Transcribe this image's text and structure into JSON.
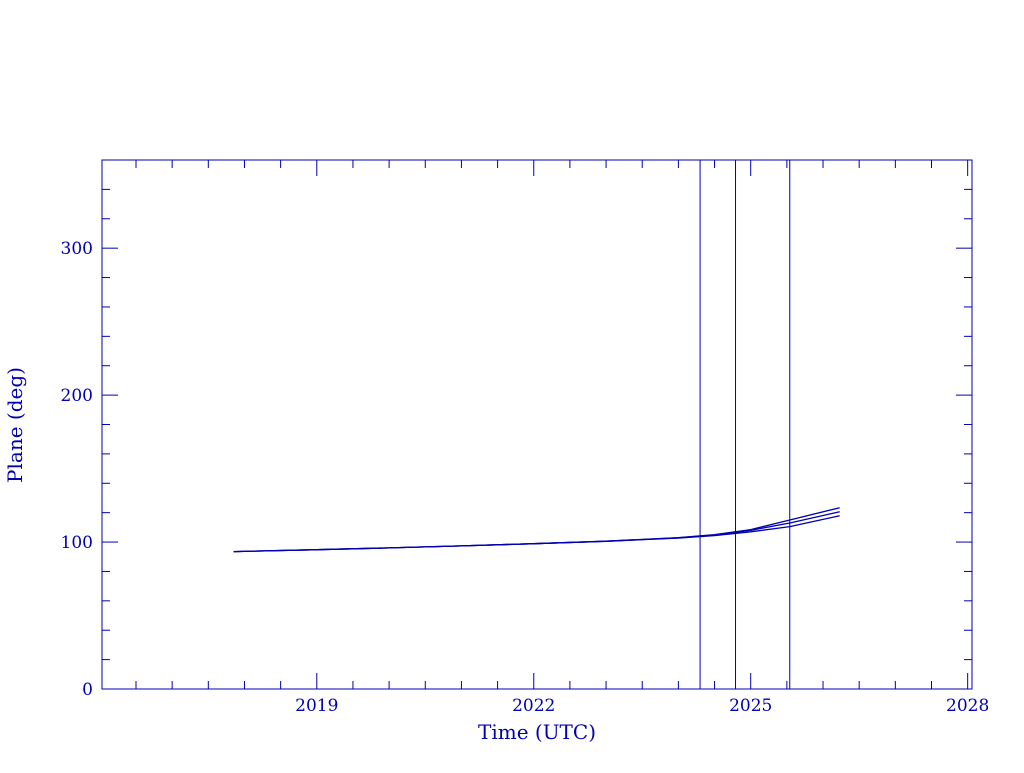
{
  "chart_data": {
    "type": "line",
    "title": "",
    "xlabel": "Time (UTC)",
    "ylabel": "Plane (deg)",
    "xlim": [
      2016.03,
      2028.06
    ],
    "ylim": [
      0,
      360
    ],
    "xticks": [
      2019,
      2022,
      2025,
      2028
    ],
    "xtick_labels": [
      "2019",
      "2022",
      "2025",
      "2028"
    ],
    "xminor_step": 0.5,
    "yticks": [
      0,
      100,
      200,
      300
    ],
    "ytick_labels": [
      "0",
      "100",
      "200",
      "300"
    ],
    "yminor_step": 20,
    "grid": false,
    "color": "#0000b0",
    "vertical_lines": [
      2024.3,
      2024.79,
      2025.54
    ],
    "series": [
      {
        "x": [
          2017.85,
          2019,
          2020,
          2021,
          2022,
          2023,
          2024,
          2024.5,
          2025,
          2025.54,
          2026.23
        ],
        "y": [
          93.5,
          94.8,
          96,
          97.4,
          98.9,
          100.6,
          103,
          105,
          108.5,
          115,
          123.4
        ]
      },
      {
        "x": [
          2017.85,
          2019,
          2020,
          2021,
          2022,
          2023,
          2024,
          2024.5,
          2025,
          2025.54,
          2026.23
        ],
        "y": [
          93.5,
          94.8,
          96,
          97.4,
          98.9,
          100.6,
          102.9,
          104.8,
          108,
          113,
          120.6
        ]
      },
      {
        "x": [
          2017.85,
          2019,
          2020,
          2021,
          2022,
          2023,
          2024,
          2024.5,
          2025,
          2025.54,
          2026.23
        ],
        "y": [
          93.5,
          94.8,
          96,
          97.4,
          98.9,
          100.5,
          102.7,
          104.4,
          107,
          110.5,
          117.9
        ]
      }
    ]
  }
}
